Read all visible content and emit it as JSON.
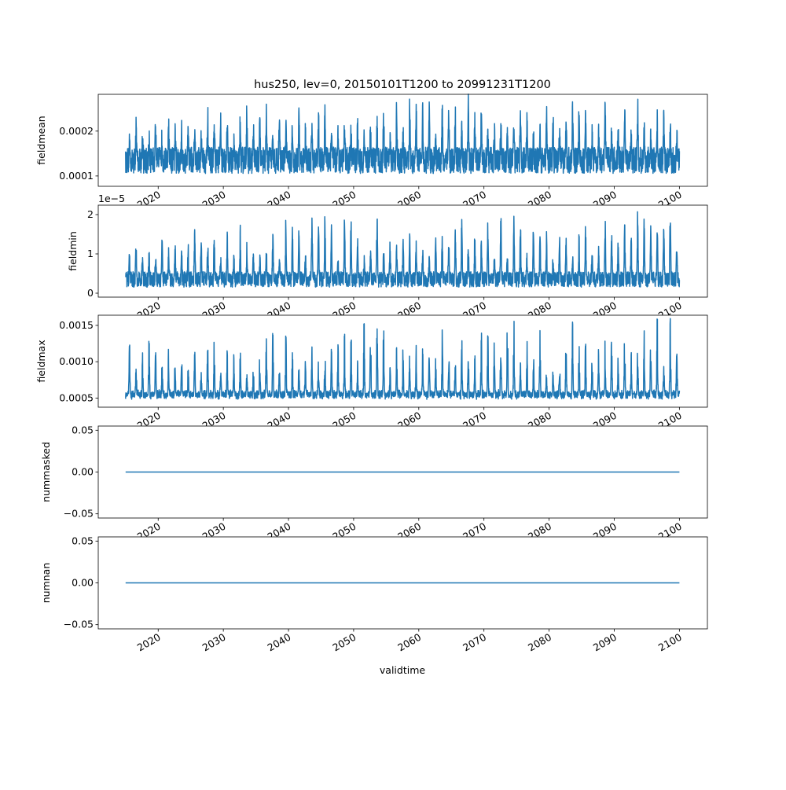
{
  "chart_data": {
    "type": "line",
    "title": "hus250, lev=0, 20150101T1200 to 20991231T1200",
    "xlabel": "validtime",
    "xlim": [
      2010.8,
      2104.3
    ],
    "xticks": [
      2020,
      2030,
      2040,
      2050,
      2060,
      2070,
      2080,
      2090,
      2100
    ],
    "x_range": [
      2015.0,
      2100.0
    ],
    "color": "#1f77b4",
    "panels": [
      {
        "ylabel": "fieldmean",
        "ylim": [
          7.7e-05,
          0.000282
        ],
        "yticks": [
          0.0001,
          0.0002
        ],
        "yticklabels": [
          "0.0001",
          "0.0002"
        ],
        "offset_text": "",
        "series": {
          "baseline": 0.000135,
          "seasonal_peak_range": [
            0.00019,
            0.00027
          ],
          "trough": 9e-05,
          "peak_max": 0.000272
        }
      },
      {
        "ylabel": "fieldmin",
        "ylim": [
          -0.1,
          2.24
        ],
        "yticks": [
          0,
          1,
          2
        ],
        "yticklabels": [
          "0",
          "1",
          "2"
        ],
        "offset_text": "1e−5",
        "series": {
          "baseline": 0.35,
          "seasonal_peak_range": [
            0.9,
            2.15
          ],
          "trough": 0.05,
          "peak_max": 2.15
        }
      },
      {
        "ylabel": "fieldmax",
        "ylim": [
          0.000374,
          0.00164
        ],
        "yticks": [
          0.0005,
          0.001,
          0.0015
        ],
        "yticklabels": [
          "0.0005",
          "0.0010",
          "0.0015"
        ],
        "offset_text": "",
        "series": {
          "baseline": 0.00056,
          "seasonal_peak_range": [
            0.0008,
            0.0016
          ],
          "trough": 0.00044,
          "peak_max": 0.00159
        }
      },
      {
        "ylabel": "nummasked",
        "ylim": [
          -0.055,
          0.055
        ],
        "yticks": [
          -0.05,
          0.0,
          0.05
        ],
        "yticklabels": [
          "−0.05",
          "0.00",
          "0.05"
        ],
        "offset_text": "",
        "series": {
          "constant": 0.0
        }
      },
      {
        "ylabel": "numnan",
        "ylim": [
          -0.055,
          0.055
        ],
        "yticks": [
          -0.05,
          0.0,
          0.05
        ],
        "yticklabels": [
          "−0.05",
          "0.00",
          "0.05"
        ],
        "offset_text": "",
        "series": {
          "constant": 0.0
        }
      }
    ]
  }
}
